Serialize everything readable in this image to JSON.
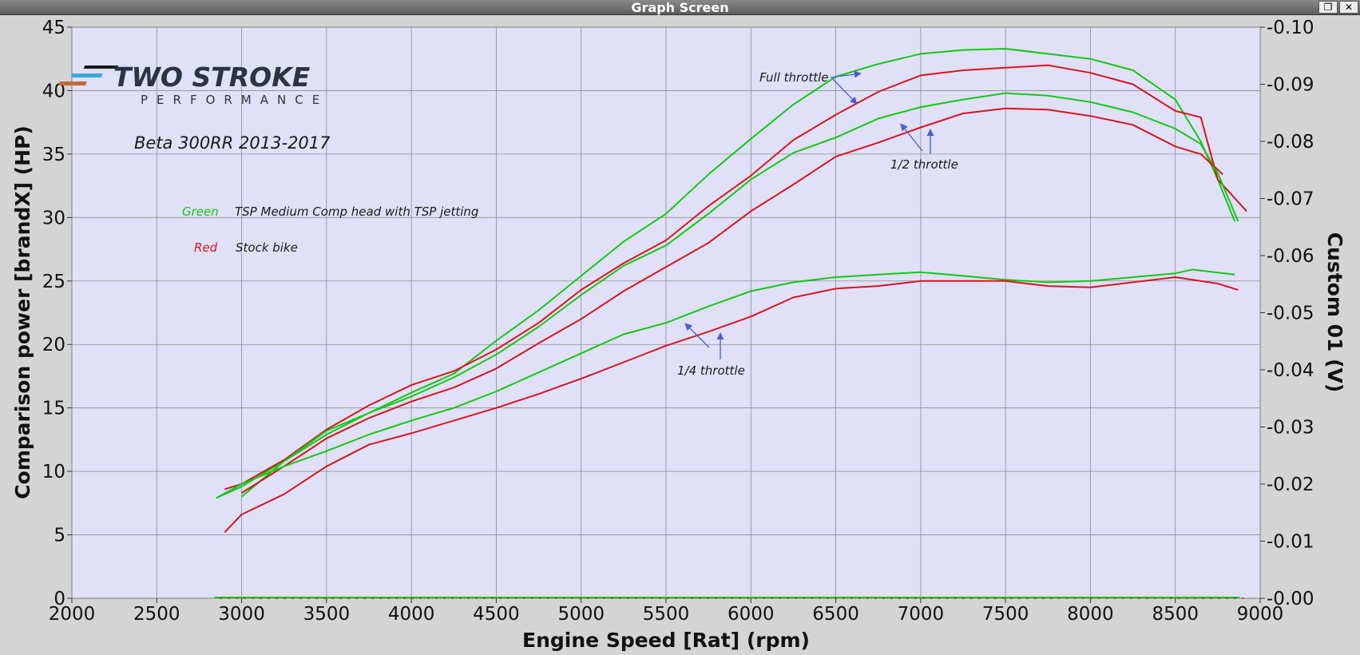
{
  "window": {
    "title": "Graph Screen",
    "restore_symbol": "❐",
    "close_symbol": "✕"
  },
  "chart_data": {
    "type": "line",
    "subtitle": "Beta 300RR 2013-2017",
    "logo": {
      "main": "TWO STROKE",
      "sub": "PERFORMANCE"
    },
    "xlabel": "Engine Speed [Rat] (rpm)",
    "ylabel": "Comparison power [brandX] (HP)",
    "y2label": "Custom 01 (V)",
    "xlim": [
      2000,
      9000
    ],
    "ylim": [
      0,
      45
    ],
    "y2lim": [
      0.0,
      0.1
    ],
    "xticks": [
      "2000",
      "2500",
      "3000",
      "3500",
      "4000",
      "4500",
      "5000",
      "5500",
      "6000",
      "6500",
      "7000",
      "7500",
      "8000",
      "8500",
      "9000"
    ],
    "yticks": [
      "0",
      "5",
      "10",
      "15",
      "20",
      "25",
      "30",
      "35",
      "40",
      "45"
    ],
    "y2ticks": [
      "0.00",
      "0.01",
      "0.02",
      "0.03",
      "0.04",
      "0.05",
      "0.06",
      "0.07",
      "0.08",
      "0.09",
      "0.10"
    ],
    "grid": true,
    "colors": {
      "plot_bg": "#e0e0f8",
      "grid": "#8c8c8c",
      "green": "#14c814",
      "red": "#d8141e",
      "arrow": "#4a5ad8",
      "label": "#1a1a1a"
    },
    "legend": [
      {
        "key": "Green",
        "text": "TSP Medium Comp head with TSP jetting",
        "color": "#14c814"
      },
      {
        "key": "Red",
        "text": "Stock bike",
        "color": "#d8141e"
      }
    ],
    "annotations": {
      "full": "Full throttle",
      "half": "1/2 throttle",
      "quarter": "1/4 throttle"
    },
    "series": [
      {
        "color": "green",
        "x": [
          2850,
          3000,
          3250,
          3500,
          3750,
          4000,
          4250,
          4500,
          4750,
          5000,
          5250,
          5500,
          5750,
          6000,
          6250,
          6500,
          6750,
          7000,
          7250,
          7500,
          7750,
          8000,
          8250,
          8500,
          8650,
          8750,
          8850
        ],
        "y": [
          7.9,
          8.8,
          10.8,
          12.9,
          14.6,
          16.2,
          17.7,
          20.3,
          22.7,
          25.4,
          28.1,
          30.3,
          33.4,
          36.2,
          38.9,
          41.1,
          42.1,
          42.9,
          43.2,
          43.3,
          42.9,
          42.5,
          41.6,
          39.3,
          36.0,
          33.0,
          29.7
        ]
      },
      {
        "color": "red",
        "x": [
          2900,
          3000,
          3250,
          3500,
          3750,
          4000,
          4250,
          4500,
          4750,
          5000,
          5250,
          5500,
          5750,
          6000,
          6250,
          6500,
          6750,
          7000,
          7250,
          7500,
          7750,
          8000,
          8250,
          8500,
          8650,
          8750,
          8920
        ],
        "y": [
          8.6,
          9.0,
          10.9,
          13.3,
          15.2,
          16.8,
          17.9,
          19.6,
          21.7,
          24.3,
          26.4,
          28.2,
          30.9,
          33.3,
          36.1,
          38.1,
          39.9,
          41.2,
          41.6,
          41.8,
          42.0,
          41.4,
          40.5,
          38.4,
          37.9,
          33.0,
          30.5
        ]
      },
      {
        "color": "green",
        "x": [
          3000,
          3250,
          3500,
          3750,
          4000,
          4250,
          4500,
          4750,
          5000,
          5250,
          5500,
          5750,
          6000,
          6250,
          6500,
          6750,
          7000,
          7250,
          7500,
          7750,
          8000,
          8250,
          8500,
          8650,
          8750,
          8870
        ],
        "y": [
          8.0,
          10.8,
          13.2,
          14.6,
          15.9,
          17.4,
          19.2,
          21.4,
          23.9,
          26.2,
          27.8,
          30.3,
          33.0,
          35.1,
          36.3,
          37.8,
          38.7,
          39.3,
          39.8,
          39.6,
          39.1,
          38.3,
          37.0,
          35.8,
          33.5,
          29.7
        ]
      },
      {
        "color": "red",
        "x": [
          3000,
          3250,
          3500,
          3750,
          4000,
          4250,
          4500,
          4750,
          5000,
          5250,
          5500,
          5750,
          6000,
          6250,
          6500,
          6750,
          7000,
          7250,
          7500,
          7750,
          8000,
          8250,
          8500,
          8650,
          8780
        ],
        "y": [
          8.3,
          10.4,
          12.6,
          14.2,
          15.5,
          16.6,
          18.1,
          20.1,
          22.0,
          24.2,
          26.1,
          28.0,
          30.5,
          32.6,
          34.8,
          35.9,
          37.1,
          38.2,
          38.6,
          38.5,
          38.0,
          37.3,
          35.6,
          35.0,
          33.4
        ]
      },
      {
        "color": "green",
        "x": [
          2850,
          3000,
          3250,
          3500,
          3750,
          4000,
          4250,
          4500,
          4750,
          5000,
          5250,
          5500,
          5750,
          6000,
          6250,
          6500,
          6750,
          7000,
          7250,
          7500,
          7750,
          8000,
          8250,
          8500,
          8600,
          8850
        ],
        "y": [
          7.9,
          9.0,
          10.4,
          11.6,
          12.9,
          14.0,
          15.0,
          16.3,
          17.8,
          19.3,
          20.8,
          21.7,
          23.0,
          24.2,
          24.9,
          25.3,
          25.5,
          25.7,
          25.4,
          25.1,
          24.9,
          25.0,
          25.3,
          25.6,
          25.9,
          25.5
        ]
      },
      {
        "color": "red",
        "x": [
          2900,
          3000,
          3250,
          3500,
          3750,
          4000,
          4250,
          4500,
          4750,
          5000,
          5250,
          5500,
          5750,
          6000,
          6250,
          6500,
          6750,
          7000,
          7250,
          7500,
          7750,
          8000,
          8250,
          8500,
          8750,
          8870
        ],
        "y": [
          5.2,
          6.6,
          8.2,
          10.4,
          12.1,
          13.0,
          14.0,
          15.0,
          16.1,
          17.3,
          18.6,
          19.9,
          21.0,
          22.2,
          23.7,
          24.4,
          24.6,
          25.0,
          25.0,
          25.0,
          24.6,
          24.5,
          24.9,
          25.3,
          24.8,
          24.3
        ]
      }
    ]
  }
}
